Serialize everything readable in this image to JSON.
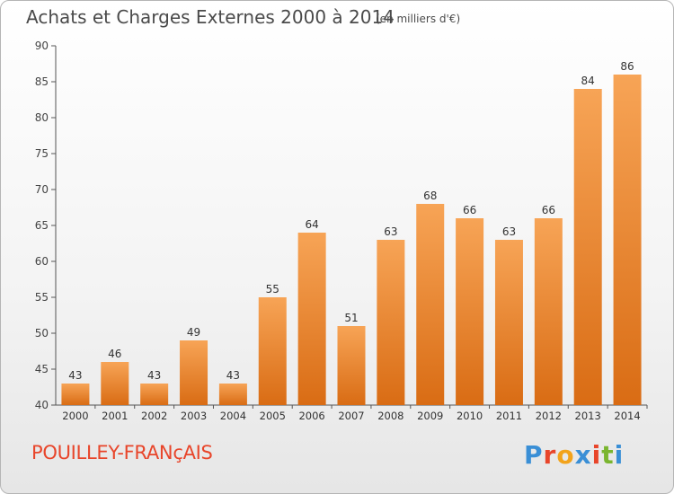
{
  "header": {
    "title": "Achats et Charges Externes 2000 à 2014",
    "subtitle": "(en milliers d'€)"
  },
  "footer": {
    "commune": "POUILLEY-FRANçAIS",
    "logo_text": "Proxiti",
    "logo_colors": [
      "#3a8fd6",
      "#e8452a",
      "#f2a31b",
      "#3a8fd6",
      "#e8452a",
      "#7ab52f",
      "#3a8fd6"
    ]
  },
  "colors": {
    "bar_top": "#f7a456",
    "bar_bottom": "#d96c14",
    "axis": "#555555",
    "grid": "#dddddd"
  },
  "chart_data": {
    "type": "bar",
    "title": "Achats et Charges Externes 2000 à 2014",
    "subtitle": "(en milliers d'€)",
    "xlabel": "",
    "ylabel": "",
    "categories": [
      "2000",
      "2001",
      "2002",
      "2003",
      "2004",
      "2005",
      "2006",
      "2007",
      "2008",
      "2009",
      "2010",
      "2011",
      "2012",
      "2013",
      "2014"
    ],
    "values": [
      43,
      46,
      43,
      49,
      43,
      55,
      64,
      51,
      63,
      68,
      66,
      63,
      66,
      84,
      86
    ],
    "ylim": [
      40,
      90
    ],
    "yticks": [
      40,
      45,
      50,
      55,
      60,
      65,
      70,
      75,
      80,
      85,
      90
    ],
    "grid": false,
    "data_labels": true
  }
}
